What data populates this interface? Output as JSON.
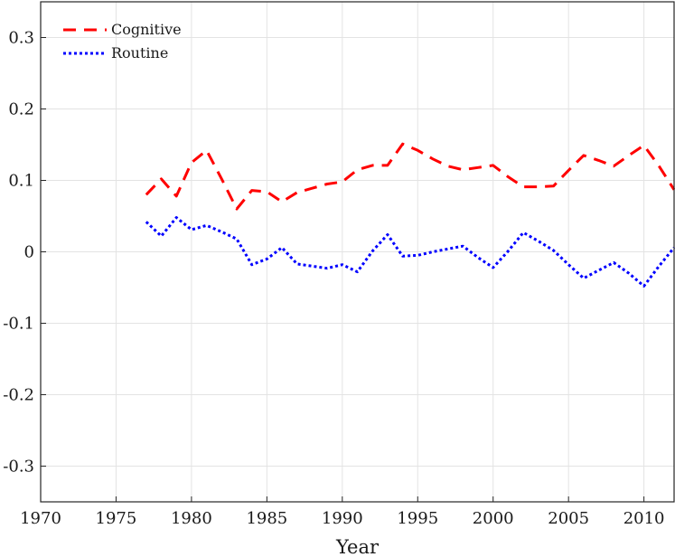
{
  "chart_data": {
    "type": "line",
    "xlabel": "Year",
    "ylabel": "",
    "xlim": [
      1970,
      2012
    ],
    "ylim": [
      -0.35,
      0.35
    ],
    "xticks": [
      1970,
      1975,
      1980,
      1985,
      1990,
      1995,
      2000,
      2005,
      2010
    ],
    "yticks": [
      -0.3,
      -0.2,
      -0.1,
      0,
      0.1,
      0.2,
      0.3
    ],
    "ytick_labels": [
      "-0.3",
      "-0.2",
      "-0.1",
      "0",
      "0.1",
      "0.2",
      "0.3"
    ],
    "grid": true,
    "legend_position": "top-left",
    "series": [
      {
        "name": "Cognitive",
        "color": "#ff0000",
        "style": "dashed",
        "x": [
          1977,
          1978,
          1979,
          1980,
          1981,
          1982,
          1983,
          1984,
          1985,
          1986,
          1987,
          1988,
          1989,
          1990,
          1991,
          1992,
          1993,
          1994,
          1995,
          1996,
          1997,
          1998,
          1999,
          2000,
          2001,
          2002,
          2003,
          2004,
          2005,
          2006,
          2007,
          2008,
          2009,
          2010,
          2011,
          2012
        ],
        "y": [
          0.08,
          0.102,
          0.078,
          0.125,
          0.142,
          0.102,
          0.06,
          0.086,
          0.084,
          0.07,
          0.083,
          0.089,
          0.095,
          0.098,
          0.115,
          0.121,
          0.121,
          0.151,
          0.142,
          0.13,
          0.12,
          0.115,
          0.118,
          0.121,
          0.105,
          0.091,
          0.091,
          0.092,
          0.114,
          0.135,
          0.128,
          0.12,
          0.135,
          0.149,
          0.12,
          0.087
        ]
      },
      {
        "name": "Routine",
        "color": "#0000ff",
        "style": "dotted",
        "x": [
          1977,
          1978,
          1979,
          1980,
          1981,
          1982,
          1983,
          1984,
          1985,
          1986,
          1987,
          1988,
          1989,
          1990,
          1991,
          1992,
          1993,
          1994,
          1995,
          1996,
          1997,
          1998,
          1999,
          2000,
          2001,
          2002,
          2003,
          2004,
          2005,
          2006,
          2007,
          2008,
          2009,
          2010,
          2011,
          2012
        ],
        "y": [
          0.042,
          0.022,
          0.048,
          0.031,
          0.037,
          0.028,
          0.018,
          -0.018,
          -0.01,
          0.006,
          -0.017,
          -0.02,
          -0.023,
          -0.018,
          -0.028,
          0.001,
          0.024,
          -0.006,
          -0.005,
          0.0,
          0.004,
          0.008,
          -0.008,
          -0.022,
          0.001,
          0.027,
          0.015,
          0.002,
          -0.018,
          -0.037,
          -0.026,
          -0.015,
          -0.03,
          -0.048,
          -0.02,
          0.006
        ]
      }
    ]
  }
}
